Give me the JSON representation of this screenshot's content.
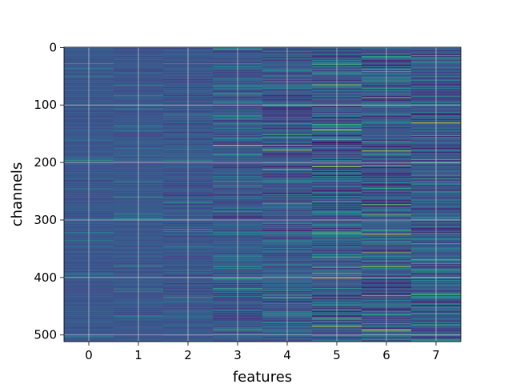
{
  "chart_data": {
    "type": "heatmap",
    "title": "",
    "xlabel": "features",
    "ylabel": "channels",
    "x_ticks": [
      0,
      1,
      2,
      3,
      4,
      5,
      6,
      7
    ],
    "y_ticks": [
      0,
      100,
      200,
      300,
      400,
      500
    ],
    "x_range": [
      -0.5,
      7.5
    ],
    "y_range": [
      511.5,
      -0.5
    ],
    "n_rows": 512,
    "n_cols": 8,
    "colormap": "viridis",
    "grid": true,
    "colorbar": false,
    "column_spread": [
      0.04,
      0.05,
      0.07,
      0.1,
      0.14,
      0.18,
      0.17,
      0.15
    ],
    "highlights": [
      {
        "col": 3,
        "row": 170,
        "value": 0.9
      },
      {
        "col": 4,
        "row": 170,
        "value": 0.85
      },
      {
        "col": 4,
        "row": 178,
        "value": 0.95
      },
      {
        "col": 4,
        "row": 212,
        "value": 0.85
      },
      {
        "col": 4,
        "row": 400,
        "value": 0.8
      },
      {
        "col": 5,
        "row": 45,
        "value": 0.6
      },
      {
        "col": 5,
        "row": 65,
        "value": 0.9
      },
      {
        "col": 5,
        "row": 100,
        "value": 0.75
      },
      {
        "col": 5,
        "row": 143,
        "value": 0.9
      },
      {
        "col": 5,
        "row": 160,
        "value": 0.7
      },
      {
        "col": 5,
        "row": 207,
        "value": 0.97
      },
      {
        "col": 5,
        "row": 300,
        "value": 0.7
      },
      {
        "col": 5,
        "row": 365,
        "value": 0.7
      },
      {
        "col": 5,
        "row": 401,
        "value": 0.97
      },
      {
        "col": 5,
        "row": 485,
        "value": 0.97
      },
      {
        "col": 6,
        "row": 58,
        "value": 0.65
      },
      {
        "col": 6,
        "row": 180,
        "value": 0.9
      },
      {
        "col": 6,
        "row": 205,
        "value": 0.8
      },
      {
        "col": 6,
        "row": 325,
        "value": 0.95
      },
      {
        "col": 6,
        "row": 357,
        "value": 0.85
      },
      {
        "col": 6,
        "row": 381,
        "value": 0.9
      },
      {
        "col": 6,
        "row": 492,
        "value": 0.9
      },
      {
        "col": 7,
        "row": 18,
        "value": 0.6
      },
      {
        "col": 7,
        "row": 131,
        "value": 0.95
      },
      {
        "col": 7,
        "row": 195,
        "value": 0.7
      },
      {
        "col": 7,
        "row": 430,
        "value": 0.7
      }
    ]
  }
}
